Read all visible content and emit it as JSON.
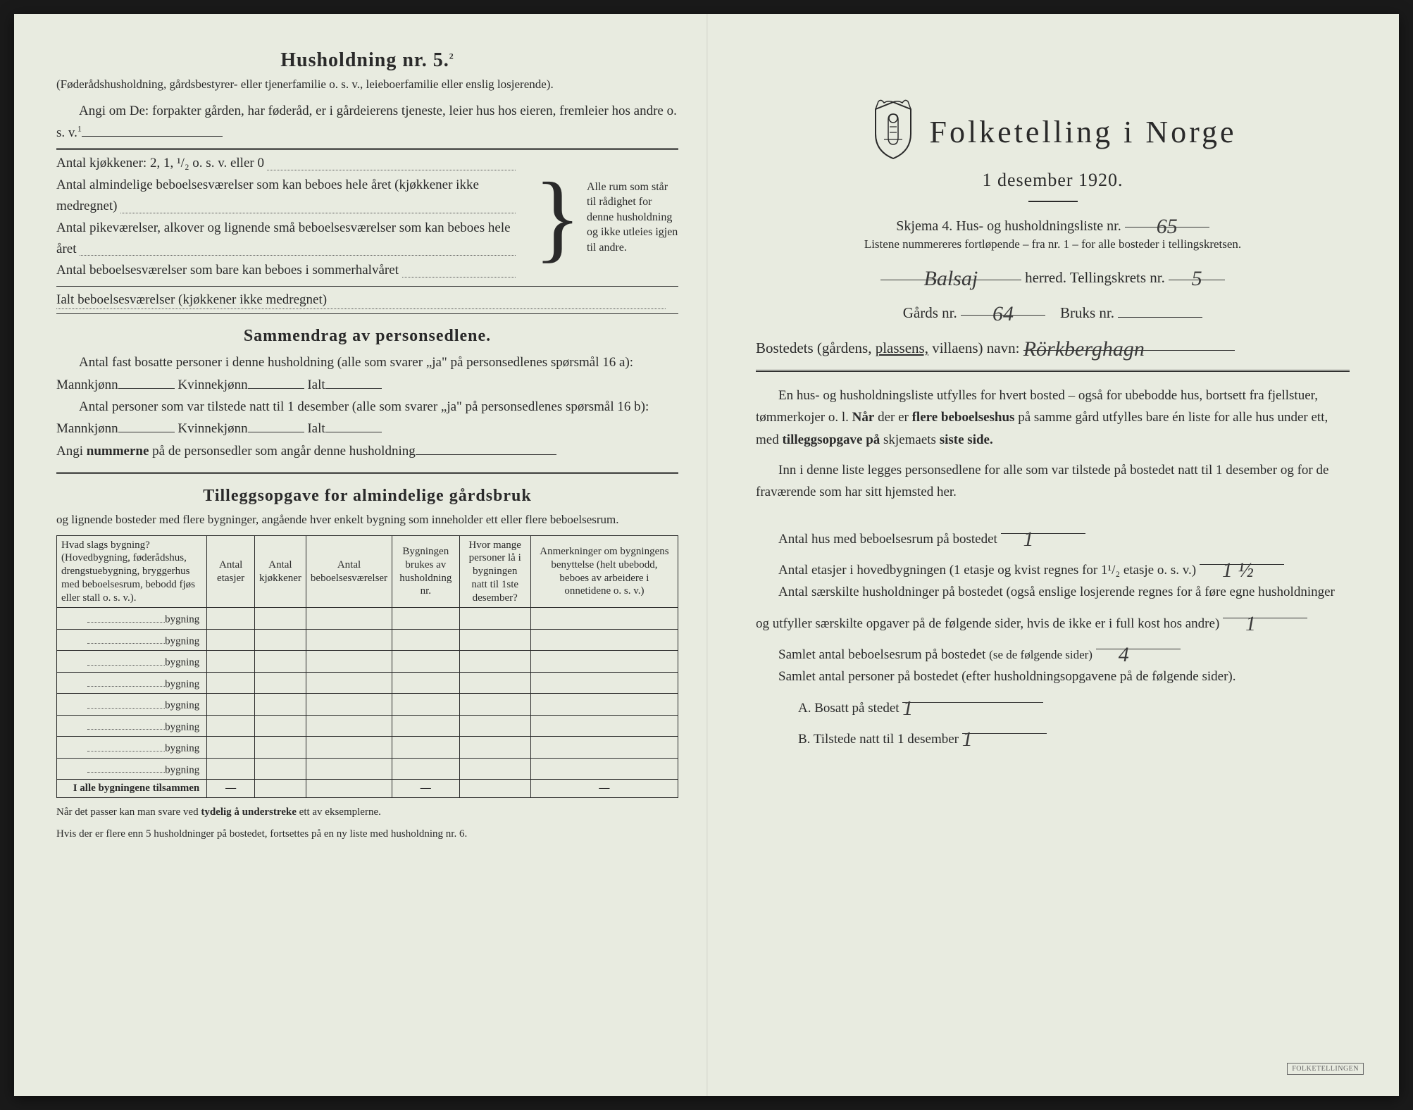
{
  "left": {
    "heading": "Husholdning nr. 5.",
    "heading_sup": "2",
    "paren": "(Føderådshusholdning, gårdsbestyrer- eller tjenerfamilie o. s. v., leieboerfamilie eller enslig losjerende).",
    "angi": "Angi om De:  forpakter gården, har føderåd, er i gårdeierens tjeneste, leier hus hos eieren, fremleier hos andre o. s. v.",
    "angi_sup": "1",
    "rows": [
      "Antal kjøkkener: 2, 1, ¹/₂ o. s. v. eller 0",
      "Antal almindelige beboelsesværelser som kan beboes hele året (kjøkkener ikke medregnet)",
      "Antal pikeværelser, alkover og lignende små beboelsesværelser som kan beboes hele året",
      "Antal beboelsesværelser som bare kan beboes i sommerhalvåret"
    ],
    "bracket_note": "Alle rum som står til rådighet for denne husholdning og ikke utleies igjen til andre.",
    "ialt": "Ialt beboelsesværelser  (kjøkkener ikke medregnet)",
    "sammendrag_h": "Sammendrag av personsedlene.",
    "sammendrag_p1": "Antal fast bosatte personer i denne husholdning (alle som svarer „ja\" på personsedlenes spørsmål 16 a): Mannkjønn",
    "kvinne": "Kvinnekjønn",
    "ialt_lbl": "Ialt",
    "sammendrag_p2": "Antal personer som var tilstede natt til 1 desember (alle som svarer „ja\" på personsedlenes spørsmål 16 b): Mannkjønn",
    "angi_num": "Angi nummerne på de personsedler som angår denne husholdning",
    "tilleg_h": "Tilleggsopgave for almindelige gårdsbruk",
    "tilleg_sub": "og lignende bosteder med flere bygninger, angående hver enkelt bygning som inneholder ett eller flere beboelsesrum.",
    "table": {
      "headers": [
        "Hvad slags bygning?\n(Hovedbygning, føderådshus, drengstuebygning, bryggerhus med beboelsesrum, bebodd fjøs eller stall o. s. v.).",
        "Antal etasjer",
        "Antal kjøkkener",
        "Antal beboelsesværelser",
        "Bygningen brukes av husholdning nr.",
        "Hvor mange personer lå i bygningen natt til 1ste desember?",
        "Anmerkninger om bygningens benyttelse (helt ubebodd, beboes av arbeidere i onnetidene o. s. v.)"
      ],
      "row_label": "bygning",
      "row_count": 8,
      "total_label": "I alle bygningene tilsammen",
      "dash": "—"
    },
    "foot1": "Når det passer kan man svare ved tydelig å understreke ett av eksemplerne.",
    "foot2": "Hvis der er flere enn 5 husholdninger på bostedet, fortsettes på en ny liste med husholdning nr. 6."
  },
  "right": {
    "title": "Folketelling  i  Norge",
    "date": "1 desember 1920.",
    "skjema": "Skjema 4.  Hus- og husholdningsliste nr.",
    "liste_nr": "65",
    "listene": "Listene nummereres fortløpende – fra nr. 1 – for alle bosteder i tellingskretsen.",
    "herred_val": "Balsaj",
    "herred_lbl": "herred.   Tellingskrets nr.",
    "tellingskrets_nr": "5",
    "gards_lbl": "Gårds nr.",
    "gards_nr": "64",
    "bruks_lbl": "Bruks nr.",
    "bruks_nr": "",
    "bosted_lbl": "Bostedets (gårdens, plassens, villaens) navn:",
    "bosted_val": "Rörkberghagn",
    "para1": "En hus- og husholdningsliste utfylles for hvert bosted – også for ubebodde hus, bortsett fra fjellstuer, tømmerkojer o. l.  Når der er flere beboelseshus på samme gård utfylles bare én liste for alle hus under ett, med tilleggsopgave på skjemaets siste side.",
    "para2": "Inn i denne liste legges personsedlene for alle som var tilstede på bostedet natt til 1 desember og for de fraværende som har sitt hjemsted her.",
    "q1": "Antal hus med beboelsesrum på bostedet",
    "q1_val": "1",
    "q2a": "Antal etasjer i hovedbygningen (1 etasje og kvist regnes for 1¹/₂ etasje o. s. v.)",
    "q2_val": "1 ½",
    "q3": "Antal særskilte husholdninger på bostedet (også enslige losjerende regnes for å føre egne husholdninger og utfyller særskilte opgaver på de følgende sider, hvis de ikke er i full kost hos andre)",
    "q3_val": "1",
    "q4": "Samlet antal beboelsesrum på bostedet (se de følgende sider)",
    "q4_val": "4",
    "q5": "Samlet antal personer på bostedet (efter husholdningsopgavene på de følgende sider).",
    "qA": "A.  Bosatt på stedet",
    "qA_val": "1",
    "qB": "B.  Tilstede natt til 1 desember",
    "qB_val": "1",
    "stamp": "FOLKETELLINGEN"
  },
  "colors": {
    "paper": "#e8ebe0",
    "ink": "#2a2a2a",
    "hand": "#3a3a3a"
  }
}
